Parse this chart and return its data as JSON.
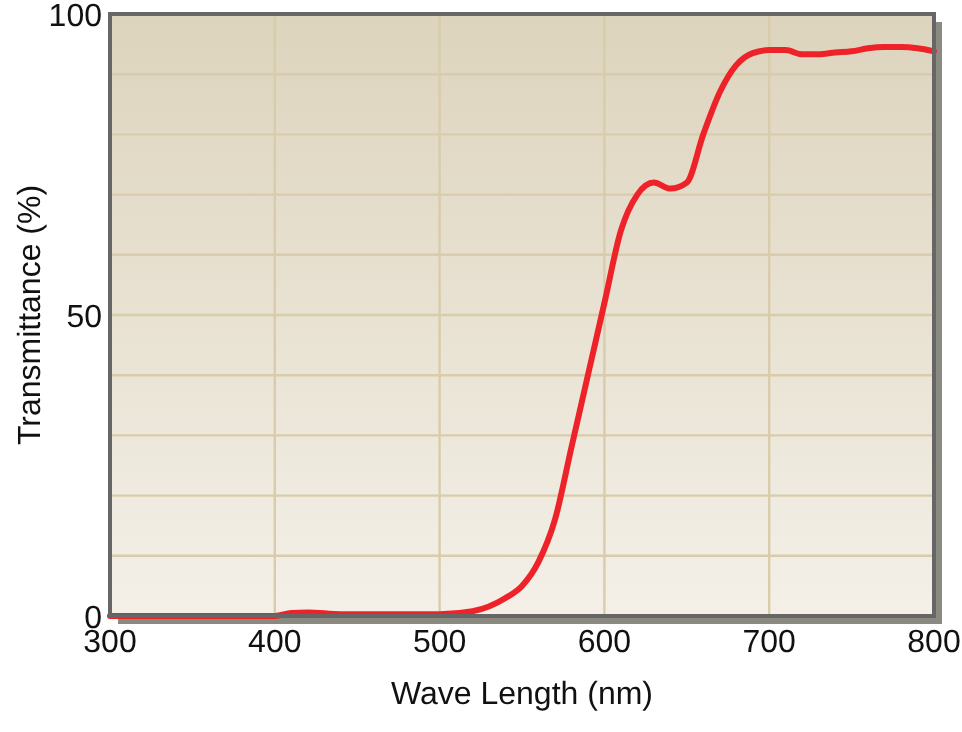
{
  "chart_data": {
    "type": "line",
    "xlabel": "Wave Length (nm)",
    "ylabel": "Transmittance (%)",
    "xlim": [
      300,
      800
    ],
    "ylim": [
      0,
      100
    ],
    "xticks": [
      300,
      400,
      500,
      600,
      700,
      800
    ],
    "yticks": [
      0,
      {
        "value": 10,
        "label": null
      },
      {
        "value": 20,
        "label": null
      },
      {
        "value": 30,
        "label": null
      },
      {
        "value": 40,
        "label": null
      },
      50,
      {
        "value": 60,
        "label": null
      },
      {
        "value": 70,
        "label": null
      },
      {
        "value": 80,
        "label": null
      },
      {
        "value": 90,
        "label": null
      },
      100
    ],
    "grid": true,
    "marker": "none",
    "line_style": "solid",
    "series": [
      {
        "color": "#ee2229",
        "x": [
          300,
          350,
          400,
          410,
          420,
          440,
          470,
          500,
          520,
          540,
          550,
          560,
          570,
          580,
          590,
          600,
          610,
          620,
          630,
          640,
          650,
          660,
          670,
          680,
          690,
          700,
          710,
          720,
          730,
          740,
          750,
          760,
          770,
          780,
          790,
          800
        ],
        "values": [
          0,
          0,
          0,
          0.5,
          0.6,
          0.3,
          0.3,
          0.3,
          0.8,
          3,
          5,
          9,
          16,
          28,
          40,
          52,
          64,
          70,
          72,
          71,
          72,
          80,
          87,
          91.5,
          93.5,
          94,
          94,
          93.3,
          93.3,
          93.6,
          93.8,
          94.3,
          94.5,
          94.5,
          94.3,
          93.8
        ]
      }
    ]
  }
}
